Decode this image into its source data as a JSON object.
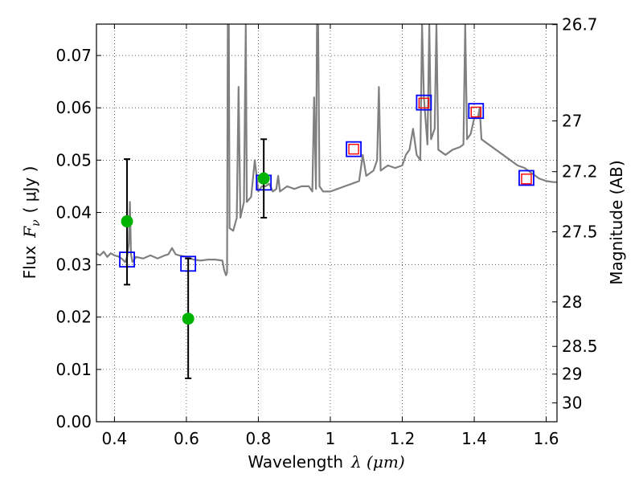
{
  "chart_data": {
    "type": "scatter",
    "title": "",
    "xlabel": "Wavelength",
    "xlabel_math": "λ (μm)",
    "ylabel": "Flux",
    "ylabel_math": "F",
    "ylabel_sub": "ν",
    "ylabel_unit": "( μJy )",
    "y2label": "Magnitude (AB)",
    "xlim": [
      0.35,
      1.63
    ],
    "ylim": [
      0.0,
      0.076
    ],
    "grid": true,
    "xticks": [
      0.4,
      0.6,
      0.8,
      1.0,
      1.2,
      1.4,
      1.6
    ],
    "xtick_labels": [
      "0.4",
      "0.6",
      "0.8",
      "1",
      "1.2",
      "1.4",
      "1.6"
    ],
    "yticks": [
      0.0,
      0.01,
      0.02,
      0.03,
      0.04,
      0.05,
      0.06,
      0.07
    ],
    "ytick_labels": [
      "0.00",
      "0.01",
      "0.02",
      "0.03",
      "0.04",
      "0.05",
      "0.06",
      "0.07"
    ],
    "y2_ticks": [
      {
        "label": "26.7",
        "flux": 0.0759
      },
      {
        "label": "27",
        "flux": 0.0575
      },
      {
        "label": "27.2",
        "flux": 0.0478
      },
      {
        "label": "27.5",
        "flux": 0.0363
      },
      {
        "label": "28",
        "flux": 0.0229
      },
      {
        "label": "28.5",
        "flux": 0.0144
      },
      {
        "label": "29",
        "flux": 0.0091
      },
      {
        "label": "30",
        "flux": 0.0036
      }
    ],
    "series": [
      {
        "kind": "line",
        "color": "#808080",
        "points": [
          [
            0.35,
            0.0322
          ],
          [
            0.36,
            0.0318
          ],
          [
            0.37,
            0.0325
          ],
          [
            0.38,
            0.0315
          ],
          [
            0.39,
            0.0322
          ],
          [
            0.4,
            0.0318
          ],
          [
            0.41,
            0.0316
          ],
          [
            0.42,
            0.0312
          ],
          [
            0.43,
            0.0305
          ],
          [
            0.435,
            0.0315
          ],
          [
            0.44,
            0.034
          ],
          [
            0.443,
            0.042
          ],
          [
            0.446,
            0.032
          ],
          [
            0.45,
            0.0305
          ],
          [
            0.46,
            0.0315
          ],
          [
            0.48,
            0.0312
          ],
          [
            0.5,
            0.0318
          ],
          [
            0.52,
            0.0312
          ],
          [
            0.54,
            0.0318
          ],
          [
            0.55,
            0.032
          ],
          [
            0.56,
            0.0332
          ],
          [
            0.57,
            0.032
          ],
          [
            0.58,
            0.0318
          ],
          [
            0.6,
            0.0315
          ],
          [
            0.62,
            0.031
          ],
          [
            0.64,
            0.0308
          ],
          [
            0.66,
            0.031
          ],
          [
            0.68,
            0.031
          ],
          [
            0.7,
            0.0308
          ],
          [
            0.705,
            0.029
          ],
          [
            0.71,
            0.028
          ],
          [
            0.713,
            0.0285
          ],
          [
            0.715,
            0.076
          ],
          [
            0.718,
            0.076
          ],
          [
            0.72,
            0.037
          ],
          [
            0.73,
            0.0365
          ],
          [
            0.74,
            0.039
          ],
          [
            0.745,
            0.064
          ],
          [
            0.75,
            0.039
          ],
          [
            0.76,
            0.042
          ],
          [
            0.765,
            0.076
          ],
          [
            0.768,
            0.042
          ],
          [
            0.78,
            0.043
          ],
          [
            0.79,
            0.05
          ],
          [
            0.8,
            0.044
          ],
          [
            0.81,
            0.045
          ],
          [
            0.82,
            0.045
          ],
          [
            0.83,
            0.0455
          ],
          [
            0.84,
            0.044
          ],
          [
            0.85,
            0.0445
          ],
          [
            0.855,
            0.047
          ],
          [
            0.86,
            0.044
          ],
          [
            0.88,
            0.045
          ],
          [
            0.9,
            0.0445
          ],
          [
            0.92,
            0.045
          ],
          [
            0.94,
            0.045
          ],
          [
            0.95,
            0.044
          ],
          [
            0.955,
            0.062
          ],
          [
            0.96,
            0.0445
          ],
          [
            0.963,
            0.076
          ],
          [
            0.966,
            0.076
          ],
          [
            0.97,
            0.045
          ],
          [
            0.98,
            0.044
          ],
          [
            1.0,
            0.044
          ],
          [
            1.02,
            0.0445
          ],
          [
            1.04,
            0.045
          ],
          [
            1.06,
            0.0455
          ],
          [
            1.08,
            0.046
          ],
          [
            1.09,
            0.051
          ],
          [
            1.1,
            0.047
          ],
          [
            1.12,
            0.048
          ],
          [
            1.13,
            0.05
          ],
          [
            1.135,
            0.064
          ],
          [
            1.14,
            0.048
          ],
          [
            1.16,
            0.049
          ],
          [
            1.18,
            0.0485
          ],
          [
            1.2,
            0.049
          ],
          [
            1.21,
            0.051
          ],
          [
            1.22,
            0.052
          ],
          [
            1.23,
            0.056
          ],
          [
            1.24,
            0.051
          ],
          [
            1.25,
            0.05
          ],
          [
            1.255,
            0.076
          ],
          [
            1.26,
            0.062
          ],
          [
            1.27,
            0.053
          ],
          [
            1.275,
            0.076
          ],
          [
            1.28,
            0.054
          ],
          [
            1.29,
            0.056
          ],
          [
            1.295,
            0.076
          ],
          [
            1.3,
            0.052
          ],
          [
            1.32,
            0.051
          ],
          [
            1.34,
            0.052
          ],
          [
            1.36,
            0.0525
          ],
          [
            1.37,
            0.053
          ],
          [
            1.375,
            0.076
          ],
          [
            1.38,
            0.054
          ],
          [
            1.39,
            0.055
          ],
          [
            1.4,
            0.058
          ],
          [
            1.41,
            0.058
          ],
          [
            1.415,
            0.06
          ],
          [
            1.42,
            0.054
          ],
          [
            1.44,
            0.053
          ],
          [
            1.46,
            0.052
          ],
          [
            1.48,
            0.051
          ],
          [
            1.5,
            0.05
          ],
          [
            1.52,
            0.049
          ],
          [
            1.54,
            0.0485
          ],
          [
            1.56,
            0.0475
          ],
          [
            1.58,
            0.0465
          ],
          [
            1.6,
            0.046
          ],
          [
            1.62,
            0.0458
          ],
          [
            1.63,
            0.0458
          ]
        ]
      },
      {
        "kind": "blue-squares",
        "color": "#0000ff",
        "points": [
          [
            0.435,
            0.031
          ],
          [
            0.605,
            0.0302
          ],
          [
            0.815,
            0.0457
          ],
          [
            1.065,
            0.0521
          ],
          [
            1.26,
            0.061
          ],
          [
            1.405,
            0.0594
          ],
          [
            1.545,
            0.0466
          ]
        ]
      },
      {
        "kind": "red-squares",
        "color": "#ff0000",
        "points": [
          [
            1.065,
            0.0521
          ],
          [
            1.26,
            0.0609
          ],
          [
            1.405,
            0.0592
          ],
          [
            1.545,
            0.0464
          ]
        ]
      },
      {
        "kind": "green-points",
        "color": "#00b300",
        "points": [
          {
            "x": 0.435,
            "y": 0.0383,
            "ylo": 0.0262,
            "yhi": 0.0502
          },
          {
            "x": 0.605,
            "y": 0.0197,
            "ylo": 0.0083,
            "yhi": 0.0312
          },
          {
            "x": 0.815,
            "y": 0.0465,
            "ylo": 0.039,
            "yhi": 0.054
          }
        ]
      }
    ]
  }
}
